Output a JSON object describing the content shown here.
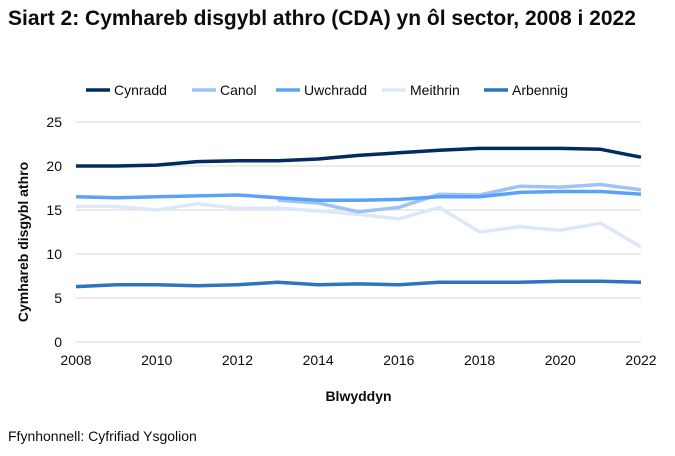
{
  "title": "Siart 2: Cymhareb disgybl athro (CDA) yn ôl sector, 2008 i 2022",
  "source": "Ffynhonnell: Cyfrifiad Ysgolion",
  "chart_data": {
    "type": "line",
    "title": "Siart 2: Cymhareb disgybl athro (CDA) yn ôl sector, 2008 i 2022",
    "xlabel": "Blwyddyn",
    "ylabel": "Cymhareb disgybl athro",
    "x": [
      2008,
      2009,
      2010,
      2011,
      2012,
      2013,
      2014,
      2015,
      2016,
      2017,
      2018,
      2019,
      2020,
      2021,
      2022
    ],
    "xticks": [
      2008,
      2010,
      2012,
      2014,
      2016,
      2018,
      2020,
      2022
    ],
    "yticks": [
      0,
      5,
      10,
      15,
      20,
      25
    ],
    "xlim": [
      2008,
      2022
    ],
    "ylim": [
      0,
      25
    ],
    "grid": "horizontal",
    "legend": "top",
    "series": [
      {
        "name": "Cynradd",
        "color": "#002c5f",
        "values": [
          20.0,
          20.0,
          20.1,
          20.5,
          20.6,
          20.6,
          20.8,
          21.2,
          21.5,
          21.8,
          22.0,
          22.0,
          22.0,
          21.9,
          21.0
        ]
      },
      {
        "name": "Canol",
        "color": "#9cc4f5",
        "values": [
          null,
          null,
          null,
          null,
          null,
          16.1,
          15.8,
          14.8,
          15.3,
          16.8,
          16.7,
          17.7,
          17.6,
          17.9,
          17.3
        ]
      },
      {
        "name": "Uwchradd",
        "color": "#5aa2f7",
        "values": [
          16.5,
          16.4,
          16.5,
          16.6,
          16.7,
          16.4,
          16.1,
          16.1,
          16.2,
          16.5,
          16.5,
          17.0,
          17.1,
          17.1,
          16.8
        ]
      },
      {
        "name": "Meithrin",
        "color": "#dce8f7",
        "values": [
          15.4,
          15.4,
          15.0,
          15.7,
          15.2,
          15.2,
          14.9,
          14.5,
          14.0,
          15.3,
          12.5,
          13.1,
          12.7,
          13.5,
          10.8
        ]
      },
      {
        "name": "Arbennig",
        "color": "#2e74c0",
        "values": [
          6.3,
          6.5,
          6.5,
          6.4,
          6.5,
          6.8,
          6.5,
          6.6,
          6.5,
          6.8,
          6.8,
          6.8,
          6.9,
          6.9,
          6.8
        ]
      }
    ]
  }
}
